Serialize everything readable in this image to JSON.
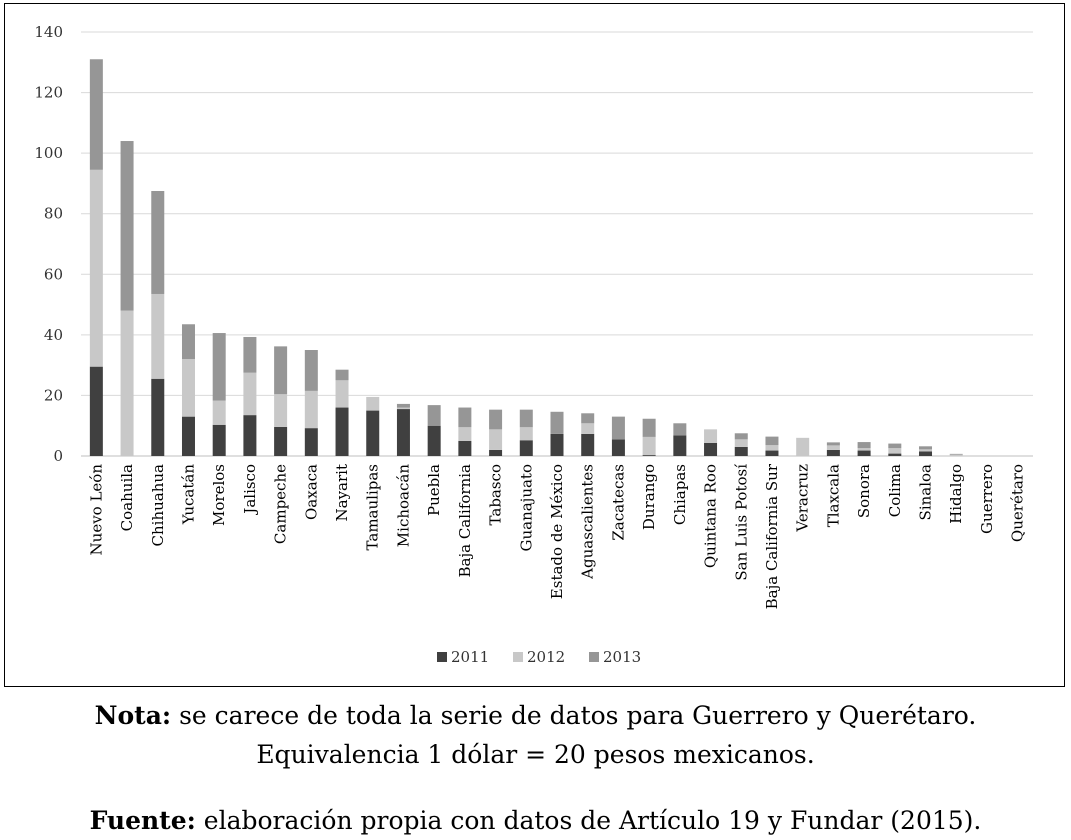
{
  "chart_data": {
    "type": "bar",
    "stacked": true,
    "categories": [
      "Nuevo León",
      "Coahuila",
      "Chihuahua",
      "Yucatán",
      "Morelos",
      "Jalisco",
      "Campeche",
      "Oaxaca",
      "Nayarit",
      "Tamaulipas",
      "Michoacán",
      "Puebla",
      "Baja California",
      "Tabasco",
      "Guanajuato",
      "Estado de México",
      "Aguascalientes",
      "Zacatecas",
      "Durango",
      "Chiapas",
      "Quintana Roo",
      "San Luis Potosí",
      "Baja California Sur",
      "Veracruz",
      "Tlaxcala",
      "Sonora",
      "Colima",
      "Sinaloa",
      "Hidalgo",
      "Guerrero",
      "Querétaro"
    ],
    "series": [
      {
        "name": "2011",
        "color": "#404040",
        "values": [
          29.5,
          0,
          25.5,
          13,
          10.3,
          13.5,
          9.6,
          9.2,
          16,
          15,
          15.5,
          10,
          5,
          2,
          5.2,
          7.3,
          7.3,
          5.5,
          0.3,
          6.8,
          4.3,
          3,
          1.8,
          0,
          2,
          1.8,
          0.8,
          1.5,
          0,
          0,
          0
        ]
      },
      {
        "name": "2012",
        "color": "#c8c8c8",
        "values": [
          65,
          48,
          28,
          19,
          8,
          14,
          10.8,
          12.3,
          9,
          4.5,
          0.5,
          0,
          4.5,
          6.8,
          4.3,
          0,
          3.5,
          0,
          6,
          0,
          4.5,
          2.5,
          1.8,
          6,
          1.5,
          0.8,
          1.8,
          0.7,
          0.5,
          0,
          0
        ]
      },
      {
        "name": "2013",
        "color": "#969696",
        "values": [
          36.5,
          56,
          34,
          11.5,
          22.3,
          11.8,
          15.8,
          13.5,
          3.5,
          0,
          1.2,
          6.8,
          6.5,
          6.5,
          5.8,
          7.3,
          3.3,
          7.5,
          6,
          4,
          0,
          2,
          2.8,
          0,
          1,
          2,
          1.5,
          1,
          0.2,
          0,
          0
        ]
      }
    ],
    "ylim": [
      0,
      140
    ],
    "yticks": [
      0,
      20,
      40,
      60,
      80,
      100,
      120,
      140
    ],
    "grid": true,
    "legend": "bottom"
  },
  "notes": {
    "nota_label": "Nota:",
    "nota_text": " se carece de toda la serie de datos para Guerrero y Querétaro.",
    "nota_line2": "Equivalencia 1 dólar = 20 pesos mexicanos.",
    "fuente_label": "Fuente:",
    "fuente_text": " elaboración propia con datos de Artículo 19 y Fundar (2015)."
  }
}
